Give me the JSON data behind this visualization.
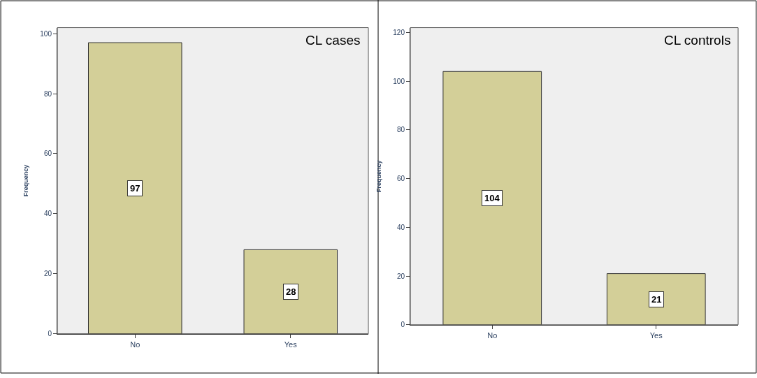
{
  "chart_data": [
    {
      "type": "bar",
      "title": "CL cases",
      "ylabel": "Frequency",
      "categories": [
        "No",
        "Yes"
      ],
      "values": [
        97,
        28
      ],
      "color": "#d3cf98",
      "ylim": [
        0,
        102
      ],
      "yticks": [
        0,
        20,
        40,
        60,
        80,
        100
      ],
      "data_labels": true,
      "grid": false
    },
    {
      "type": "bar",
      "title": "CL controls",
      "ylabel": "Frequency",
      "categories": [
        "No",
        "Yes"
      ],
      "values": [
        104,
        21
      ],
      "color": "#d3cf98",
      "ylim": [
        0,
        122
      ],
      "yticks": [
        0,
        20,
        40,
        60,
        80,
        100,
        120
      ],
      "data_labels": true,
      "grid": false
    }
  ]
}
